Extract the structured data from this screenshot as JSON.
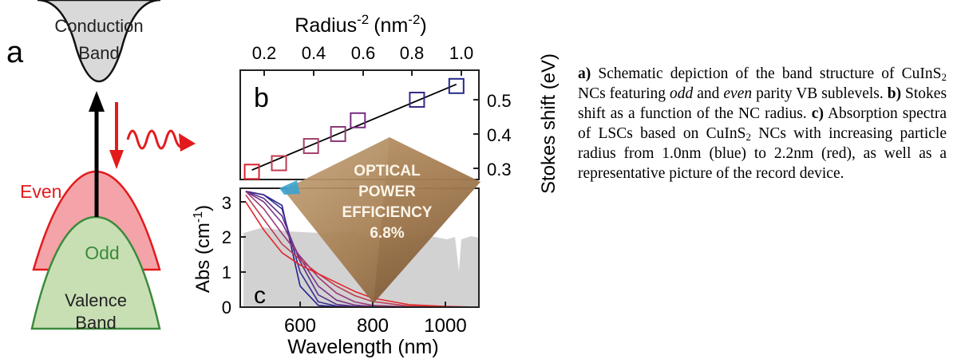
{
  "panel_a": {
    "label": "a",
    "conduction_band": [
      "Conduction",
      "Band"
    ],
    "even_label": "Even",
    "odd_label": "Odd",
    "valence_band": [
      "Valence",
      "Band"
    ],
    "colors": {
      "band_fill": "#d9d9d9",
      "even": "#e31a1c",
      "even_fill": "#f4a3a8",
      "odd": "#3c8a3c",
      "odd_fill": "#c8dfb4"
    }
  },
  "panel_b": {
    "label": "b",
    "top_axis_title": "Radius",
    "top_axis_title_sup": "-2",
    "top_axis_unit": "(nm",
    "top_axis_unit_sup": "-2",
    "top_axis_unit_end": ")",
    "top_ticks": [
      "0.2",
      "0.4",
      "0.6",
      "0.8",
      "1.0"
    ],
    "right_axis_title": "Stokes shift (eV)",
    "right_ticks": [
      "0.3",
      "0.4",
      "0.5"
    ]
  },
  "overlay_text": [
    "OPTICAL",
    "POWER",
    "EFFICIENCY",
    "6.8%"
  ],
  "panel_c": {
    "label": "c",
    "y_title": "Abs (cm",
    "y_title_sup": "-1",
    "y_title_end": ")",
    "y_ticks": [
      "0",
      "1",
      "2",
      "3"
    ],
    "x_ticks": [
      "600",
      "800",
      "1000"
    ],
    "x_title": "Wavelength (nm)"
  },
  "chart_data": [
    {
      "type": "scatter",
      "panel": "b",
      "xlabel": "Radius-2 (nm-2)",
      "ylabel": "Stokes shift (eV)",
      "xlim": [
        0.12,
        1.05
      ],
      "ylim": [
        0.27,
        0.57
      ],
      "x": [
        0.15,
        0.26,
        0.39,
        0.5,
        0.58,
        0.82,
        0.98
      ],
      "y": [
        0.29,
        0.315,
        0.365,
        0.4,
        0.44,
        0.5,
        0.54
      ],
      "fit_line": {
        "x": [
          0.15,
          0.98
        ],
        "y": [
          0.295,
          0.545
        ]
      },
      "marker_colors": [
        "#d6242c",
        "#c03a52",
        "#a2406a",
        "#8a3a78",
        "#7a2f82",
        "#3a2a86",
        "#252a8a"
      ],
      "grid": false
    },
    {
      "type": "line",
      "panel": "c",
      "xlabel": "Wavelength (nm)",
      "ylabel": "Abs (cm-1)",
      "xlim": [
        450,
        1100
      ],
      "ylim": [
        0,
        3.3
      ],
      "x": [
        450,
        500,
        550,
        600,
        650,
        700,
        750,
        800,
        900,
        1000,
        1100
      ],
      "series": [
        {
          "color": "#23238f",
          "values": [
            3.3,
            3.2,
            2.9,
            0.6,
            0.05,
            0.01,
            0,
            0,
            0,
            0,
            0
          ]
        },
        {
          "color": "#3a2d8f",
          "values": [
            3.3,
            3.2,
            2.8,
            1.0,
            0.15,
            0.03,
            0.01,
            0,
            0,
            0,
            0
          ]
        },
        {
          "color": "#5b318a",
          "values": [
            3.3,
            3.1,
            2.6,
            1.3,
            0.35,
            0.08,
            0.02,
            0.01,
            0,
            0,
            0
          ]
        },
        {
          "color": "#7a3485",
          "values": [
            3.3,
            3.0,
            2.4,
            1.4,
            0.6,
            0.2,
            0.06,
            0.02,
            0,
            0,
            0
          ]
        },
        {
          "color": "#9c3a7c",
          "values": [
            3.3,
            2.8,
            2.1,
            1.45,
            0.85,
            0.4,
            0.15,
            0.05,
            0.01,
            0,
            0
          ]
        },
        {
          "color": "#c03a52",
          "values": [
            3.2,
            2.5,
            1.8,
            1.35,
            0.95,
            0.6,
            0.33,
            0.16,
            0.03,
            0.01,
            0
          ]
        },
        {
          "color": "#e3262b",
          "values": [
            3.0,
            2.2,
            1.55,
            1.2,
            0.95,
            0.7,
            0.45,
            0.26,
            0.07,
            0.02,
            0
          ]
        }
      ],
      "grid": false
    }
  ],
  "caption": {
    "a_label": "a)",
    "a_text_1": "Schematic depiction of the band structure of CuInS",
    "a_sub": "2",
    "a_text_2": "NCs featuring",
    "a_odd": "odd",
    "a_and": "and",
    "a_even": "even",
    "a_text_3": "parity VB sublevels.",
    "b_label": "b)",
    "b_text": "Stokes shift as a function of the NC radius.",
    "c_label": "c)",
    "c_text_1": "Absorption spectra of LSCs based on CuInS",
    "c_sub": "2",
    "c_text_2": "NCs with increasing particle radius from 1.0nm (blue) to 2.2nm (red), as well as a representative picture of the record device."
  }
}
